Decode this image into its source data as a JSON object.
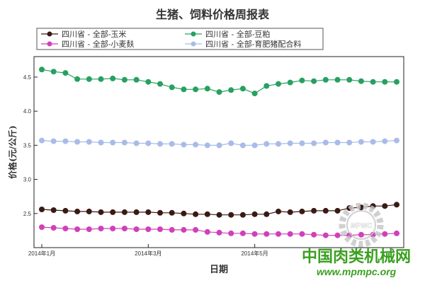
{
  "chart_data": {
    "type": "line",
    "title": "生猪、饲料价格周报表",
    "xlabel": "日期",
    "ylabel": "价格(元/公斤)",
    "ylim": [
      2.0,
      4.8
    ],
    "yticks": [
      "2.5",
      "3.0",
      "3.5",
      "4.0",
      "4.5"
    ],
    "xticks": [
      "2014年1月",
      "2014年3月",
      "2014年5月"
    ],
    "grid": false,
    "legend_position": "top",
    "series": [
      {
        "name": "四川省 - 全部-玉米",
        "color": "#3a1a14",
        "values": [
          2.56,
          2.55,
          2.54,
          2.53,
          2.53,
          2.52,
          2.52,
          2.52,
          2.52,
          2.52,
          2.51,
          2.51,
          2.5,
          2.49,
          2.49,
          2.48,
          2.48,
          2.48,
          2.49,
          2.49,
          2.53,
          2.52,
          2.53,
          2.54,
          2.54,
          2.54,
          2.58,
          2.59,
          2.61,
          2.61,
          2.63
        ]
      },
      {
        "name": "四川省 - 全部-豆粕",
        "color": "#27a060",
        "values": [
          4.61,
          4.58,
          4.56,
          4.47,
          4.47,
          4.47,
          4.48,
          4.46,
          4.46,
          4.43,
          4.4,
          4.35,
          4.32,
          4.32,
          4.33,
          4.28,
          4.31,
          4.33,
          4.26,
          4.37,
          4.4,
          4.42,
          4.45,
          4.44,
          4.46,
          4.46,
          4.46,
          4.44,
          4.43,
          4.43,
          4.43
        ]
      },
      {
        "name": "四川省 - 全部-小麦麸",
        "color": "#d040b8",
        "values": [
          2.3,
          2.29,
          2.28,
          2.27,
          2.27,
          2.28,
          2.28,
          2.28,
          2.27,
          2.27,
          2.27,
          2.26,
          2.26,
          2.26,
          2.23,
          2.22,
          2.21,
          2.21,
          2.2,
          2.2,
          2.2,
          2.2,
          2.2,
          2.19,
          2.18,
          2.18,
          2.18,
          2.19,
          2.19,
          2.2,
          2.21
        ]
      },
      {
        "name": "四川省 - 全部-育肥猪配合料",
        "color": "#a8bce8",
        "values": [
          3.57,
          3.56,
          3.56,
          3.55,
          3.55,
          3.54,
          3.54,
          3.54,
          3.53,
          3.53,
          3.52,
          3.52,
          3.51,
          3.51,
          3.5,
          3.5,
          3.53,
          3.5,
          3.5,
          3.52,
          3.52,
          3.53,
          3.53,
          3.53,
          3.54,
          3.54,
          3.54,
          3.55,
          3.55,
          3.56,
          3.57
        ]
      }
    ]
  },
  "watermark": {
    "cn_text": "中国肉类机械网",
    "url_text": "www.mpmpc.org",
    "logo_text": "MPMC",
    "color": "#3aa020",
    "logo_color": "#c8c8c8"
  }
}
